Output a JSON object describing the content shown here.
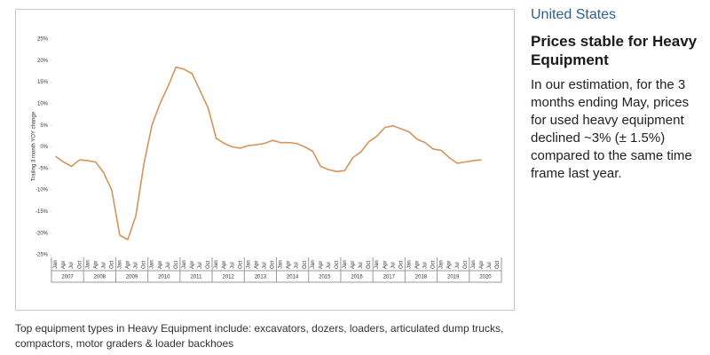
{
  "sidebar": {
    "region": "United States",
    "heading": "Prices stable for Heavy Equipment",
    "body": "In our estimation, for the 3 months ending May, prices for used heavy equipment declined ~3% (± 1.5%) compared to the same time frame last year."
  },
  "caption": "Top equipment types in Heavy Equipment include: excavators, dozers, loaders, articulated dump trucks, compactors, motor graders & loader backhoes",
  "chart_data": {
    "type": "line",
    "y_label": "Trailing 3 month YOY change",
    "color": "#d4955a",
    "categories": [
      "Jan",
      "Apr",
      "Jul",
      "Oct",
      "Jan",
      "Apr",
      "Jul",
      "Oct",
      "Jan",
      "Apr",
      "Jul",
      "Oct",
      "Jan",
      "Apr",
      "Jul",
      "Oct",
      "Jan",
      "Apr",
      "Jul",
      "Oct",
      "Jan",
      "Apr",
      "Jul",
      "Oct",
      "Jan",
      "Apr",
      "Jul",
      "Oct",
      "Jan",
      "Apr",
      "Jul",
      "Oct",
      "Jan",
      "Apr",
      "Jul",
      "Oct",
      "Jan",
      "Apr",
      "Jul",
      "Oct",
      "Jan",
      "Apr",
      "Jul",
      "Oct",
      "Jan",
      "Apr",
      "Jul",
      "Oct",
      "Jan",
      "Apr",
      "Jul",
      "Oct",
      "Jan",
      "Apr",
      "Jul",
      "Oct"
    ],
    "years": [
      "2007",
      "2008",
      "2009",
      "2010",
      "2011",
      "2012",
      "2013",
      "2014",
      "2015",
      "2016",
      "2017",
      "2018",
      "2019",
      "2020"
    ],
    "values": [
      -2.2,
      -3.5,
      -4.5,
      -3,
      -3.2,
      -3.5,
      -6,
      -10,
      -20.5,
      -21.5,
      -16,
      -4,
      5,
      10,
      14,
      18.5,
      18,
      17,
      13,
      9,
      2,
      0.8,
      0,
      -0.3,
      0.3,
      0.5,
      0.8,
      1.5,
      1,
      1,
      0.8,
      0,
      -1,
      -4.5,
      -5.3,
      -5.7,
      -5.5,
      -2.5,
      -1.2,
      1.2,
      2.5,
      4.5,
      4.9,
      4.2,
      3.5,
      1.8,
      1,
      -0.5,
      -0.8,
      -2.5,
      -3.8,
      -3.5,
      -3.2,
      -3,
      null,
      null
    ],
    "ylim": [
      -25,
      25
    ],
    "yticks": [
      {
        "value": -25,
        "label": "-25%"
      },
      {
        "value": -20,
        "label": "-20%"
      },
      {
        "value": -15,
        "label": "-15%"
      },
      {
        "value": -10,
        "label": "-10%"
      },
      {
        "value": -5,
        "label": "-5%"
      },
      {
        "value": 0,
        "label": "0%"
      },
      {
        "value": 5,
        "label": "5%"
      },
      {
        "value": 10,
        "label": "10%"
      },
      {
        "value": 15,
        "label": "15%"
      },
      {
        "value": 20,
        "label": "20%"
      },
      {
        "value": 25,
        "label": "25%"
      }
    ]
  }
}
